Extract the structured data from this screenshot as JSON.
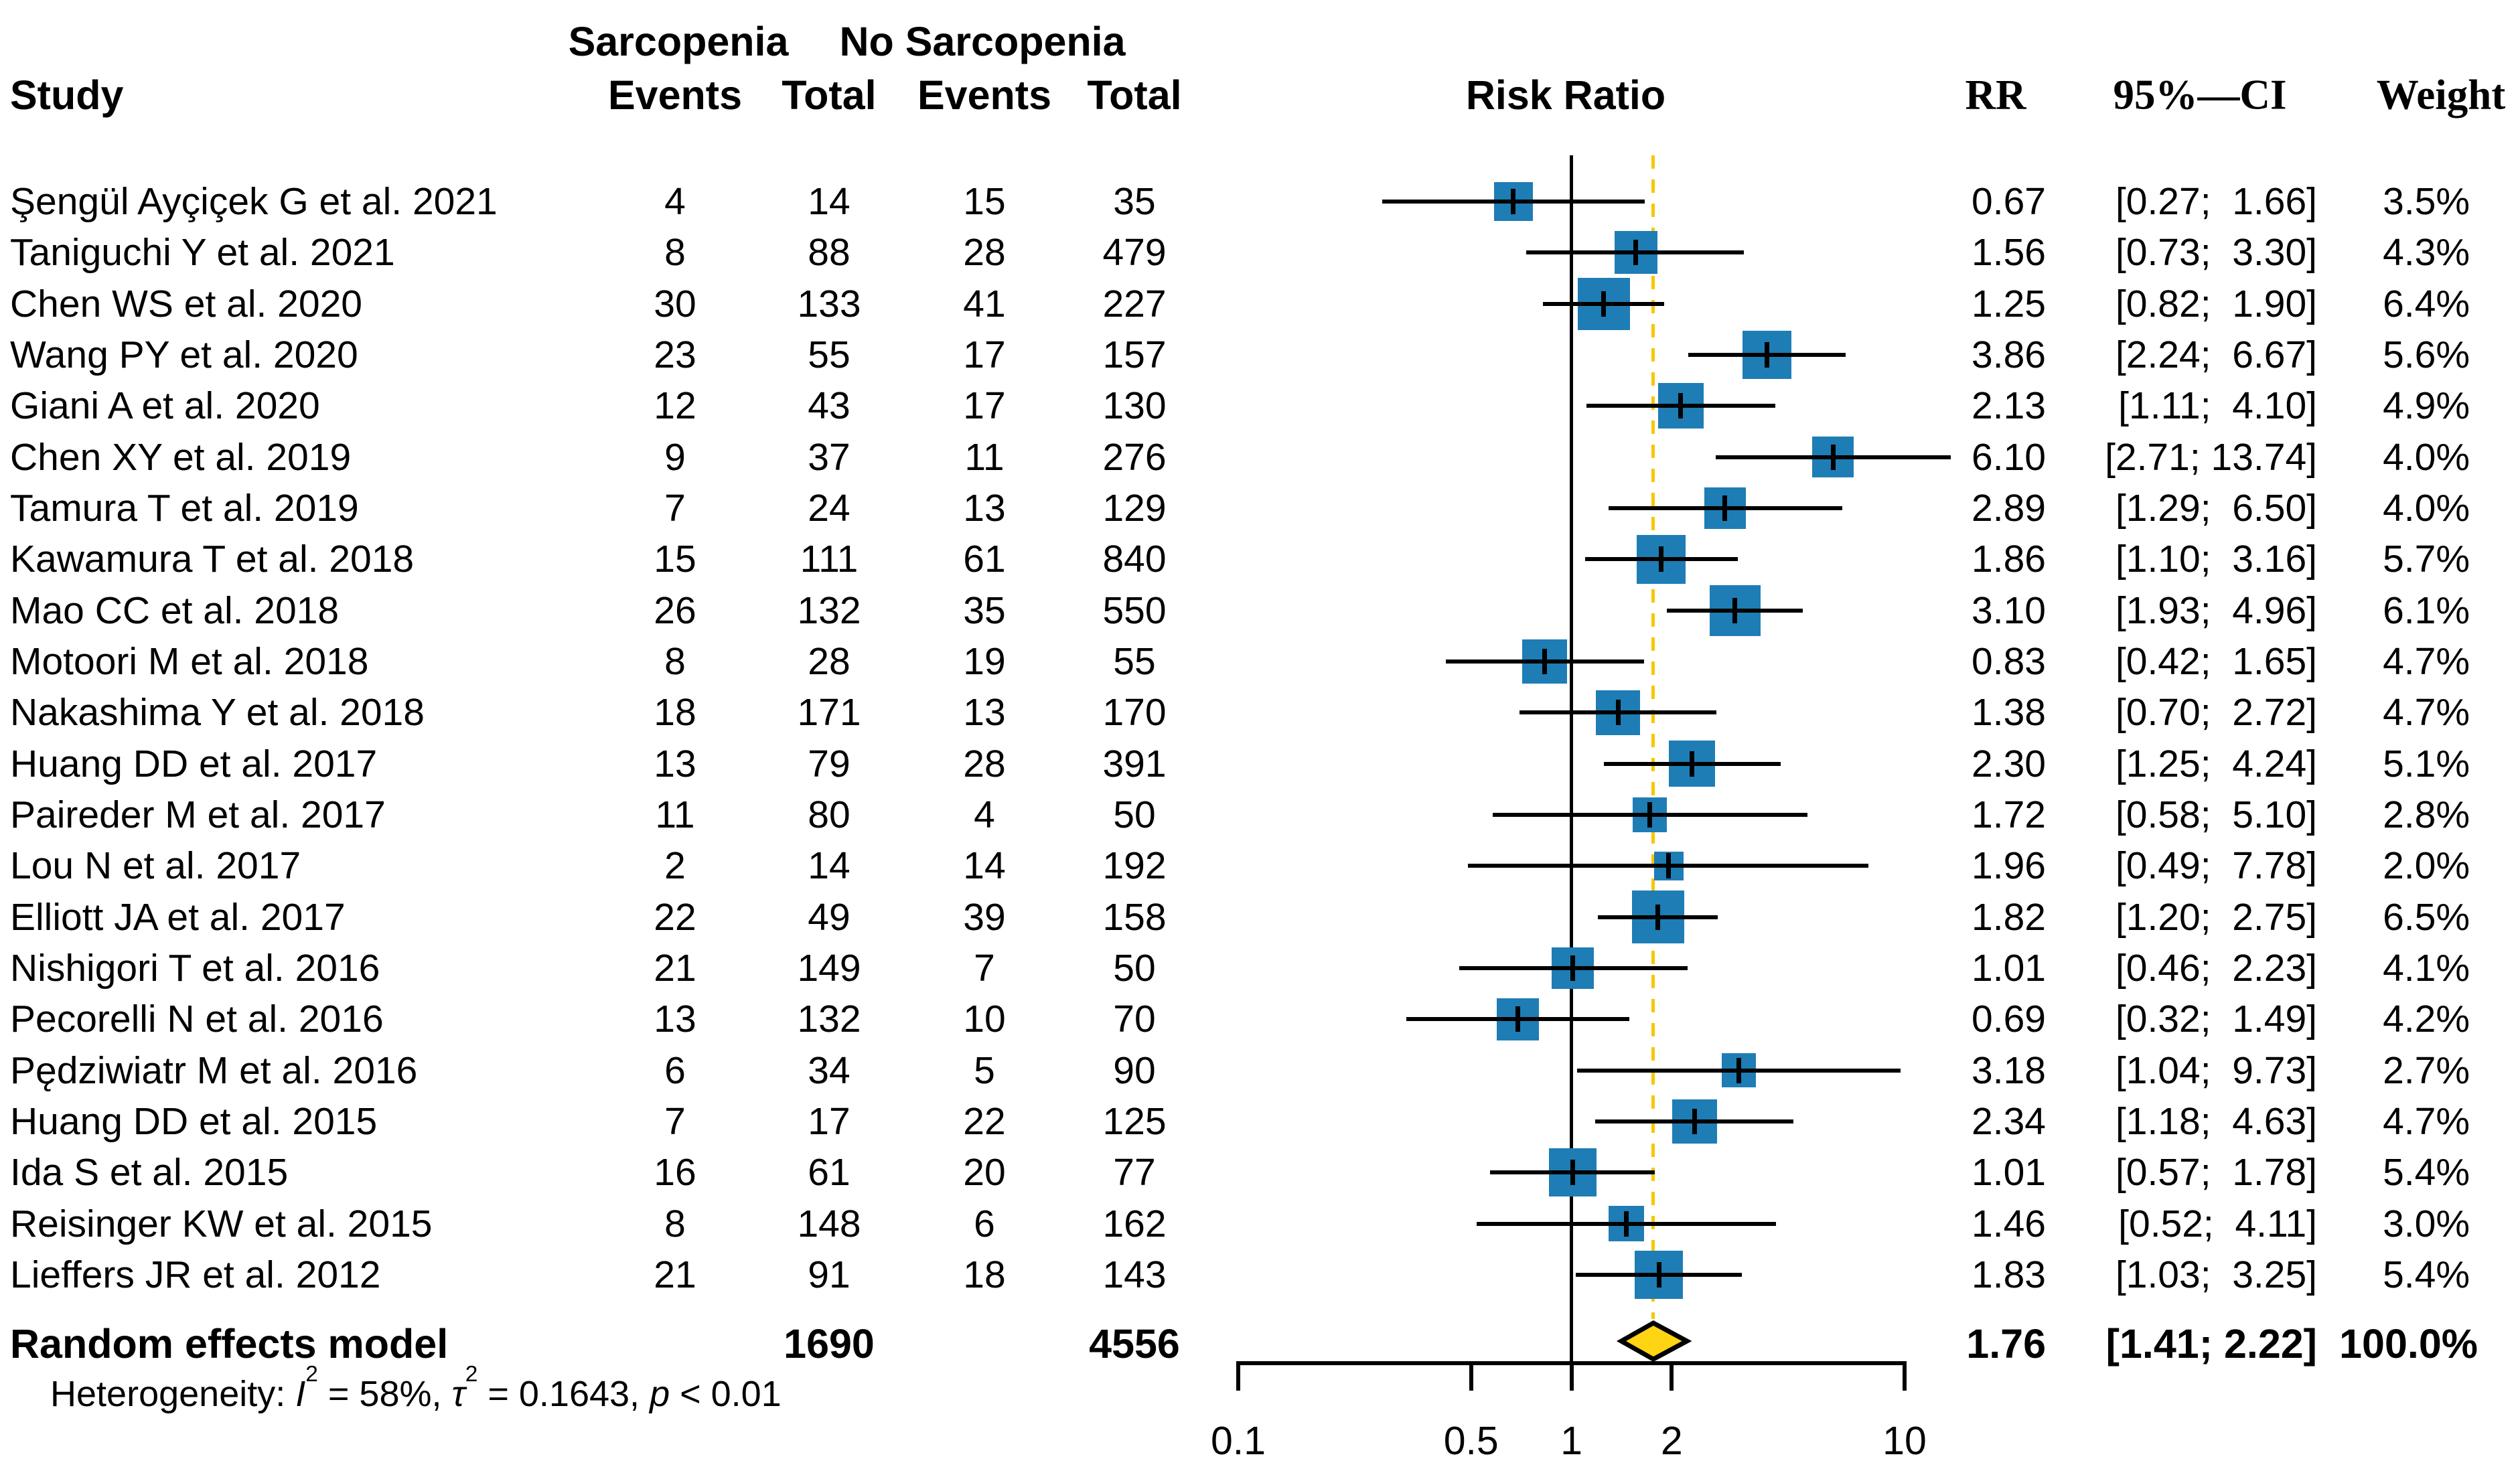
{
  "figure": {
    "headers": {
      "group_sarcopenia": "Sarcopenia",
      "group_no_sarcopenia": "No Sarcopenia",
      "study": "Study",
      "events_1": "Events",
      "total_1": "Total",
      "events_2": "Events",
      "total_2": "Total",
      "risk_ratio": "Risk Ratio",
      "rr": "RR",
      "ci": "95%—CI",
      "weight": "Weight"
    },
    "summary": {
      "label": "Random effects model",
      "sarcopenia_total": "1690",
      "nosarcopenia_total": "4556",
      "rr_text": "1.76",
      "ci_text": "[1.41; 2.22]",
      "weight_text": "100.0%"
    },
    "heterogeneity": {
      "prefix": "Heterogeneity: ",
      "i_symbol": "I",
      "sup2_a": "2",
      "i_value": " = 58%, ",
      "tau_symbol": "τ",
      "sup2_b": "2",
      "tau_value": " = 0.1643, ",
      "p_symbol": "p",
      "p_value": " < 0.01"
    },
    "colors": {
      "square_fill": "#1e7db5",
      "diamond_fill": "#ffd412",
      "dashed_line": "#f7c800",
      "line": "#000000"
    }
  },
  "chart_data": {
    "type": "forest",
    "title": "",
    "x_axis": {
      "scale": "log10",
      "ticks": [
        0.1,
        0.5,
        1,
        2,
        10
      ],
      "tick_labels": [
        "0.1",
        "0.5",
        "1",
        "2",
        "10"
      ],
      "range": [
        0.1,
        10
      ],
      "reference_line": 1,
      "pooled_dashed_line": 1.76
    },
    "studies": [
      {
        "label": "Şengül Ayçiçek G et al. 2021",
        "sarcopenia_events": "4",
        "sarcopenia_total": "14",
        "nosarcopenia_events": "15",
        "nosarcopenia_total": "35",
        "rr_text": "0.67",
        "ci_text": "[0.27;  1.66]",
        "weight_text": "3.5%",
        "rr": 0.67,
        "ci_low": 0.27,
        "ci_high": 1.66,
        "weight": 3.5
      },
      {
        "label": "Taniguchi Y et al. 2021",
        "sarcopenia_events": "8",
        "sarcopenia_total": "88",
        "nosarcopenia_events": "28",
        "nosarcopenia_total": "479",
        "rr_text": "1.56",
        "ci_text": "[0.73;  3.30]",
        "weight_text": "4.3%",
        "rr": 1.56,
        "ci_low": 0.73,
        "ci_high": 3.3,
        "weight": 4.3
      },
      {
        "label": "Chen WS et al. 2020",
        "sarcopenia_events": "30",
        "sarcopenia_total": "133",
        "nosarcopenia_events": "41",
        "nosarcopenia_total": "227",
        "rr_text": "1.25",
        "ci_text": "[0.82;  1.90]",
        "weight_text": "6.4%",
        "rr": 1.25,
        "ci_low": 0.82,
        "ci_high": 1.9,
        "weight": 6.4
      },
      {
        "label": "Wang PY et al. 2020",
        "sarcopenia_events": "23",
        "sarcopenia_total": "55",
        "nosarcopenia_events": "17",
        "nosarcopenia_total": "157",
        "rr_text": "3.86",
        "ci_text": "[2.24;  6.67]",
        "weight_text": "5.6%",
        "rr": 3.86,
        "ci_low": 2.24,
        "ci_high": 6.67,
        "weight": 5.6
      },
      {
        "label": "Giani A et al. 2020",
        "sarcopenia_events": "12",
        "sarcopenia_total": "43",
        "nosarcopenia_events": "17",
        "nosarcopenia_total": "130",
        "rr_text": "2.13",
        "ci_text": "[1.11;  4.10]",
        "weight_text": "4.9%",
        "rr": 2.13,
        "ci_low": 1.11,
        "ci_high": 4.1,
        "weight": 4.9
      },
      {
        "label": "Chen XY et al. 2019",
        "sarcopenia_events": "9",
        "sarcopenia_total": "37",
        "nosarcopenia_events": "11",
        "nosarcopenia_total": "276",
        "rr_text": "6.10",
        "ci_text": "[2.71; 13.74]",
        "weight_text": "4.0%",
        "rr": 6.1,
        "ci_low": 2.71,
        "ci_high": 13.74,
        "weight": 4.0
      },
      {
        "label": "Tamura T et al. 2019",
        "sarcopenia_events": "7",
        "sarcopenia_total": "24",
        "nosarcopenia_events": "13",
        "nosarcopenia_total": "129",
        "rr_text": "2.89",
        "ci_text": "[1.29;  6.50]",
        "weight_text": "4.0%",
        "rr": 2.89,
        "ci_low": 1.29,
        "ci_high": 6.5,
        "weight": 4.0
      },
      {
        "label": "Kawamura T et al. 2018",
        "sarcopenia_events": "15",
        "sarcopenia_total": "111",
        "nosarcopenia_events": "61",
        "nosarcopenia_total": "840",
        "rr_text": "1.86",
        "ci_text": "[1.10;  3.16]",
        "weight_text": "5.7%",
        "rr": 1.86,
        "ci_low": 1.1,
        "ci_high": 3.16,
        "weight": 5.7
      },
      {
        "label": "Mao CC et al. 2018",
        "sarcopenia_events": "26",
        "sarcopenia_total": "132",
        "nosarcopenia_events": "35",
        "nosarcopenia_total": "550",
        "rr_text": "3.10",
        "ci_text": "[1.93;  4.96]",
        "weight_text": "6.1%",
        "rr": 3.1,
        "ci_low": 1.93,
        "ci_high": 4.96,
        "weight": 6.1
      },
      {
        "label": "Motoori M et al. 2018",
        "sarcopenia_events": "8",
        "sarcopenia_total": "28",
        "nosarcopenia_events": "19",
        "nosarcopenia_total": "55",
        "rr_text": "0.83",
        "ci_text": "[0.42;  1.65]",
        "weight_text": "4.7%",
        "rr": 0.83,
        "ci_low": 0.42,
        "ci_high": 1.65,
        "weight": 4.7
      },
      {
        "label": "Nakashima Y et al. 2018",
        "sarcopenia_events": "18",
        "sarcopenia_total": "171",
        "nosarcopenia_events": "13",
        "nosarcopenia_total": "170",
        "rr_text": "1.38",
        "ci_text": "[0.70;  2.72]",
        "weight_text": "4.7%",
        "rr": 1.38,
        "ci_low": 0.7,
        "ci_high": 2.72,
        "weight": 4.7
      },
      {
        "label": "Huang DD et al. 2017",
        "sarcopenia_events": "13",
        "sarcopenia_total": "79",
        "nosarcopenia_events": "28",
        "nosarcopenia_total": "391",
        "rr_text": "2.30",
        "ci_text": "[1.25;  4.24]",
        "weight_text": "5.1%",
        "rr": 2.3,
        "ci_low": 1.25,
        "ci_high": 4.24,
        "weight": 5.1
      },
      {
        "label": "Paireder M et al. 2017",
        "sarcopenia_events": "11",
        "sarcopenia_total": "80",
        "nosarcopenia_events": "4",
        "nosarcopenia_total": "50",
        "rr_text": "1.72",
        "ci_text": "[0.58;  5.10]",
        "weight_text": "2.8%",
        "rr": 1.72,
        "ci_low": 0.58,
        "ci_high": 5.1,
        "weight": 2.8
      },
      {
        "label": "Lou N et al. 2017",
        "sarcopenia_events": "2",
        "sarcopenia_total": "14",
        "nosarcopenia_events": "14",
        "nosarcopenia_total": "192",
        "rr_text": "1.96",
        "ci_text": "[0.49;  7.78]",
        "weight_text": "2.0%",
        "rr": 1.96,
        "ci_low": 0.49,
        "ci_high": 7.78,
        "weight": 2.0
      },
      {
        "label": "Elliott JA et al. 2017",
        "sarcopenia_events": "22",
        "sarcopenia_total": "49",
        "nosarcopenia_events": "39",
        "nosarcopenia_total": "158",
        "rr_text": "1.82",
        "ci_text": "[1.20;  2.75]",
        "weight_text": "6.5%",
        "rr": 1.82,
        "ci_low": 1.2,
        "ci_high": 2.75,
        "weight": 6.5
      },
      {
        "label": "Nishigori T et al. 2016",
        "sarcopenia_events": "21",
        "sarcopenia_total": "149",
        "nosarcopenia_events": "7",
        "nosarcopenia_total": "50",
        "rr_text": "1.01",
        "ci_text": "[0.46;  2.23]",
        "weight_text": "4.1%",
        "rr": 1.01,
        "ci_low": 0.46,
        "ci_high": 2.23,
        "weight": 4.1
      },
      {
        "label": "Pecorelli N et al. 2016",
        "sarcopenia_events": "13",
        "sarcopenia_total": "132",
        "nosarcopenia_events": "10",
        "nosarcopenia_total": "70",
        "rr_text": "0.69",
        "ci_text": "[0.32;  1.49]",
        "weight_text": "4.2%",
        "rr": 0.69,
        "ci_low": 0.32,
        "ci_high": 1.49,
        "weight": 4.2
      },
      {
        "label": "Pędziwiatr M et al. 2016",
        "sarcopenia_events": "6",
        "sarcopenia_total": "34",
        "nosarcopenia_events": "5",
        "nosarcopenia_total": "90",
        "rr_text": "3.18",
        "ci_text": "[1.04;  9.73]",
        "weight_text": "2.7%",
        "rr": 3.18,
        "ci_low": 1.04,
        "ci_high": 9.73,
        "weight": 2.7
      },
      {
        "label": "Huang DD et al. 2015",
        "sarcopenia_events": "7",
        "sarcopenia_total": "17",
        "nosarcopenia_events": "22",
        "nosarcopenia_total": "125",
        "rr_text": "2.34",
        "ci_text": "[1.18;  4.63]",
        "weight_text": "4.7%",
        "rr": 2.34,
        "ci_low": 1.18,
        "ci_high": 4.63,
        "weight": 4.7
      },
      {
        "label": "Ida S et al. 2015",
        "sarcopenia_events": "16",
        "sarcopenia_total": "61",
        "nosarcopenia_events": "20",
        "nosarcopenia_total": "77",
        "rr_text": "1.01",
        "ci_text": "[0.57;  1.78]",
        "weight_text": "5.4%",
        "rr": 1.01,
        "ci_low": 0.57,
        "ci_high": 1.78,
        "weight": 5.4
      },
      {
        "label": "Reisinger KW et al. 2015",
        "sarcopenia_events": "8",
        "sarcopenia_total": "148",
        "nosarcopenia_events": "6",
        "nosarcopenia_total": "162",
        "rr_text": "1.46",
        "ci_text": "[0.52;  4.11]",
        "weight_text": "3.0%",
        "rr": 1.46,
        "ci_low": 0.52,
        "ci_high": 4.11,
        "weight": 3.0
      },
      {
        "label": "Lieffers JR et al. 2012",
        "sarcopenia_events": "21",
        "sarcopenia_total": "91",
        "nosarcopenia_events": "18",
        "nosarcopenia_total": "143",
        "rr_text": "1.83",
        "ci_text": "[1.03;  3.25]",
        "weight_text": "5.4%",
        "rr": 1.83,
        "ci_low": 1.03,
        "ci_high": 3.25,
        "weight": 5.4
      }
    ],
    "pooled": {
      "rr": 1.76,
      "ci_low": 1.41,
      "ci_high": 2.22,
      "weight": 100.0
    }
  }
}
